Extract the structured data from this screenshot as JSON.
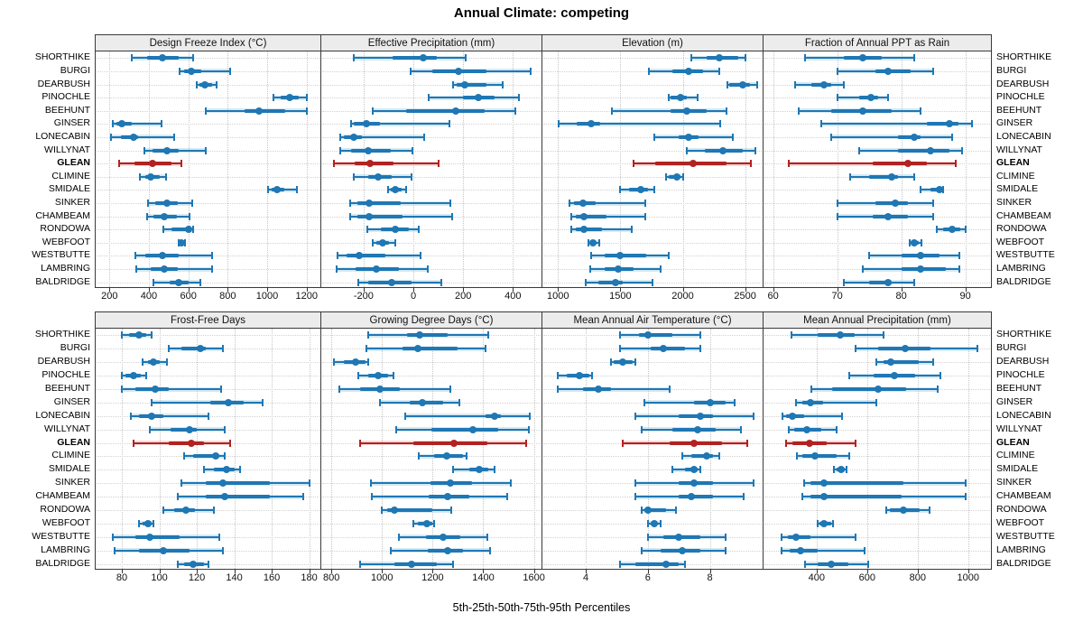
{
  "title": "Annual Climate: competing",
  "xlabel": "5th-25th-50th-75th-95th Percentiles",
  "colors": {
    "series_dark": "#1f77b4",
    "series_light": "#9ecae1",
    "highlight_dark": "#b22222",
    "highlight_light": "#e9a3a3",
    "strip_bg": "#ececec",
    "grid": "#c6c6c6"
  },
  "sites": [
    "SHORTHIKE",
    "BURGI",
    "DEARBUSH",
    "PINOCHLE",
    "BEEHUNT",
    "GINSER",
    "LONECABIN",
    "WILLYNAT",
    "GLEAN",
    "CLIMINE",
    "SMIDALE",
    "SINKER",
    "CHAMBEAM",
    "RONDOWA",
    "WEBFOOT",
    "WESTBUTTE",
    "LAMBRING",
    "BALDRIDGE"
  ],
  "highlight_site": "GLEAN",
  "chart_data": {
    "type": "interval",
    "percentiles": [
      5,
      25,
      50,
      75,
      95
    ],
    "panels": [
      {
        "title": "Design Freeze Index (°C)",
        "xlim": [
          130,
          1270
        ],
        "ticks": [
          200,
          400,
          600,
          800,
          1000,
          1200
        ],
        "values": [
          [
            315,
            390,
            470,
            550,
            625
          ],
          [
            555,
            580,
            615,
            665,
            810
          ],
          [
            645,
            655,
            685,
            720,
            745
          ],
          [
            1030,
            1070,
            1115,
            1160,
            1200
          ],
          [
            690,
            885,
            960,
            1090,
            1200
          ],
          [
            215,
            235,
            265,
            315,
            465
          ],
          [
            210,
            260,
            320,
            345,
            530
          ],
          [
            375,
            420,
            490,
            550,
            690
          ],
          [
            250,
            325,
            420,
            515,
            565
          ],
          [
            355,
            380,
            410,
            455,
            485
          ],
          [
            1005,
            1025,
            1050,
            1085,
            1150
          ],
          [
            395,
            430,
            490,
            545,
            620
          ],
          [
            390,
            425,
            480,
            540,
            605
          ],
          [
            475,
            515,
            600,
            615,
            625
          ],
          [
            550,
            556,
            565,
            575,
            585
          ],
          [
            330,
            380,
            470,
            550,
            720
          ],
          [
            335,
            410,
            480,
            545,
            720
          ],
          [
            425,
            505,
            550,
            600,
            660
          ]
        ]
      },
      {
        "title": "Effective Precipitation (mm)",
        "xlim": [
          -370,
          515
        ],
        "ticks": [
          -200,
          0,
          200,
          400
        ],
        "values": [
          [
            -240,
            -85,
            40,
            95,
            210
          ],
          [
            -10,
            75,
            180,
            295,
            470
          ],
          [
            160,
            175,
            205,
            295,
            360
          ],
          [
            60,
            200,
            260,
            325,
            425
          ],
          [
            -165,
            -30,
            170,
            285,
            410
          ],
          [
            -250,
            -240,
            -190,
            -135,
            145
          ],
          [
            -295,
            -280,
            -240,
            -205,
            45
          ],
          [
            -295,
            -250,
            -180,
            -90,
            -5
          ],
          [
            -320,
            -235,
            -175,
            -80,
            100
          ],
          [
            -240,
            -180,
            -143,
            -87,
            -9
          ],
          [
            -100,
            -90,
            -73,
            -48,
            -30
          ],
          [
            -255,
            -225,
            -178,
            -50,
            148
          ],
          [
            -255,
            -225,
            -178,
            -45,
            155
          ],
          [
            -185,
            -130,
            -73,
            -18,
            20
          ],
          [
            -165,
            -148,
            -125,
            -97,
            -73
          ],
          [
            -305,
            -267,
            -218,
            -111,
            30
          ],
          [
            -310,
            -233,
            -148,
            -57,
            58
          ],
          [
            -220,
            -182,
            -87,
            -8,
            113
          ]
        ]
      },
      {
        "title": "Elevation (m)",
        "xlim": [
          875,
          2640
        ],
        "ticks": [
          1000,
          1500,
          2000,
          2500
        ],
        "values": [
          [
            2070,
            2190,
            2295,
            2445,
            2505
          ],
          [
            1730,
            1920,
            2050,
            2160,
            2295
          ],
          [
            2355,
            2375,
            2480,
            2540,
            2595
          ],
          [
            1890,
            1900,
            1980,
            2030,
            2120
          ],
          [
            1430,
            1905,
            2035,
            2190,
            2350
          ],
          [
            1005,
            1150,
            1265,
            1340,
            2300
          ],
          [
            1775,
            1965,
            2050,
            2125,
            2400
          ],
          [
            2030,
            2175,
            2320,
            2480,
            2585
          ],
          [
            1605,
            1780,
            2080,
            2350,
            2545
          ],
          [
            1865,
            1885,
            1950,
            1985,
            2005
          ],
          [
            1500,
            1570,
            1660,
            1720,
            1775
          ],
          [
            1090,
            1130,
            1200,
            1300,
            1700
          ],
          [
            1110,
            1140,
            1210,
            1390,
            1700
          ],
          [
            1110,
            1140,
            1210,
            1355,
            1590
          ],
          [
            1245,
            1260,
            1280,
            1310,
            1330
          ],
          [
            1265,
            1375,
            1500,
            1705,
            1885
          ],
          [
            1260,
            1375,
            1485,
            1605,
            1820
          ],
          [
            1220,
            1320,
            1460,
            1520,
            1760
          ]
        ]
      },
      {
        "title": "Fraction of Annual PPT as Rain",
        "xlim": [
          58.5,
          94
        ],
        "ticks": [
          60,
          70,
          80,
          90
        ],
        "values": [
          [
            65,
            71,
            74,
            77,
            82
          ],
          [
            70,
            76,
            78,
            81.5,
            85
          ],
          [
            63.5,
            66,
            68,
            69,
            71
          ],
          [
            70,
            73.5,
            75.3,
            76.4,
            78
          ],
          [
            64,
            69,
            74,
            78.5,
            83
          ],
          [
            67.5,
            84,
            87.5,
            89,
            91
          ],
          [
            69,
            79.5,
            82,
            83,
            88
          ],
          [
            73.5,
            79.5,
            84.5,
            87.5,
            89.5
          ],
          [
            62.5,
            75.5,
            81,
            84,
            88.5
          ],
          [
            72,
            75,
            78.5,
            79.5,
            82
          ],
          [
            83,
            84.5,
            85.9,
            86.1,
            86.5
          ],
          [
            70,
            76,
            79,
            81,
            85
          ],
          [
            70,
            75.5,
            78,
            81,
            85
          ],
          [
            85.5,
            86.5,
            88,
            89.2,
            90
          ],
          [
            81.3,
            81.5,
            82,
            82.8,
            83.1
          ],
          [
            75,
            80,
            83,
            86,
            89
          ],
          [
            74,
            80,
            83,
            87,
            89
          ],
          [
            71,
            75,
            78,
            78.5,
            82
          ]
        ]
      },
      {
        "title": "Frost-Free Days",
        "xlim": [
          66,
          186
        ],
        "ticks": [
          80,
          100,
          120,
          140,
          160,
          180
        ],
        "values": [
          [
            80,
            84,
            89,
            93,
            96
          ],
          [
            105,
            112,
            122,
            125,
            134
          ],
          [
            91,
            94,
            97,
            100,
            104
          ],
          [
            80,
            82,
            86,
            90,
            93
          ],
          [
            80,
            87,
            98,
            105,
            133
          ],
          [
            96,
            127,
            137,
            145,
            155
          ],
          [
            85,
            89,
            96,
            102,
            126
          ],
          [
            95,
            106,
            116,
            120,
            135
          ],
          [
            86,
            105,
            117,
            124,
            138
          ],
          [
            113,
            118,
            130,
            132,
            135
          ],
          [
            124,
            129,
            136,
            140,
            143
          ],
          [
            112,
            125,
            134,
            159,
            180
          ],
          [
            110,
            125,
            135,
            159,
            177
          ],
          [
            102,
            108,
            114,
            119,
            129
          ],
          [
            89,
            91,
            94,
            96,
            97
          ],
          [
            75,
            87,
            95,
            111,
            132
          ],
          [
            76,
            89,
            102,
            116,
            134
          ],
          [
            110,
            113,
            118,
            124,
            126
          ]
        ]
      },
      {
        "title": "Growing Degree Days (°C)",
        "xlim": [
          760,
          1630
        ],
        "ticks": [
          800,
          1000,
          1200,
          1400,
          1600
        ],
        "values": [
          [
            945,
            1100,
            1150,
            1260,
            1420
          ],
          [
            940,
            1080,
            1140,
            1300,
            1410
          ],
          [
            810,
            850,
            895,
            935,
            945
          ],
          [
            905,
            947,
            985,
            1025,
            1045
          ],
          [
            830,
            915,
            990,
            1070,
            1270
          ],
          [
            990,
            1110,
            1160,
            1240,
            1305
          ],
          [
            1090,
            1410,
            1445,
            1470,
            1585
          ],
          [
            1055,
            1195,
            1360,
            1460,
            1580
          ],
          [
            915,
            1125,
            1285,
            1415,
            1570
          ],
          [
            1145,
            1205,
            1255,
            1320,
            1335
          ],
          [
            1280,
            1345,
            1385,
            1420,
            1445
          ],
          [
            955,
            1190,
            1270,
            1355,
            1510
          ],
          [
            958,
            1185,
            1260,
            1345,
            1495
          ],
          [
            1000,
            1022,
            1050,
            1200,
            1275
          ],
          [
            1125,
            1140,
            1177,
            1198,
            1207
          ],
          [
            1065,
            1175,
            1243,
            1310,
            1415
          ],
          [
            1035,
            1180,
            1258,
            1320,
            1425
          ],
          [
            915,
            1050,
            1117,
            1215,
            1280
          ]
        ]
      },
      {
        "title": "Mean Annual Air Temperature (°C)",
        "xlim": [
          2.6,
          9.7
        ],
        "ticks": [
          4,
          6,
          8
        ],
        "values": [
          [
            5.1,
            5.7,
            6.0,
            6.8,
            7.7
          ],
          [
            5.1,
            6.1,
            6.5,
            7.2,
            7.7
          ],
          [
            4.8,
            4.9,
            5.2,
            5.5,
            5.6
          ],
          [
            3.1,
            3.4,
            3.8,
            4.1,
            4.2
          ],
          [
            3.1,
            3.9,
            4.4,
            4.8,
            6.7
          ],
          [
            5.9,
            7.5,
            8.0,
            8.5,
            8.8
          ],
          [
            5.6,
            7.0,
            7.7,
            8.1,
            9.4
          ],
          [
            5.8,
            6.8,
            7.6,
            8.2,
            9.0
          ],
          [
            5.2,
            6.7,
            7.5,
            8.4,
            9.2
          ],
          [
            7.1,
            7.4,
            7.9,
            8.1,
            8.3
          ],
          [
            6.8,
            7.2,
            7.5,
            7.6,
            7.7
          ],
          [
            5.6,
            7.0,
            7.5,
            8.1,
            9.4
          ],
          [
            5.6,
            7.0,
            7.4,
            8.1,
            9.1
          ],
          [
            5.8,
            5.9,
            6.0,
            6.6,
            6.9
          ],
          [
            6.0,
            6.1,
            6.2,
            6.3,
            6.4
          ],
          [
            6.0,
            6.5,
            7.0,
            7.7,
            8.5
          ],
          [
            5.8,
            6.4,
            7.1,
            7.7,
            8.5
          ],
          [
            5.1,
            5.6,
            6.6,
            7.0,
            7.2
          ]
        ]
      },
      {
        "title": "Mean Annual Precipitation (mm)",
        "xlim": [
          190,
          1090
        ],
        "ticks": [
          400,
          600,
          800,
          1000
        ],
        "values": [
          [
            300,
            405,
            495,
            550,
            665
          ],
          [
            555,
            645,
            750,
            850,
            1035
          ],
          [
            635,
            665,
            695,
            805,
            860
          ],
          [
            530,
            625,
            707,
            790,
            890
          ],
          [
            380,
            460,
            645,
            755,
            880
          ],
          [
            320,
            345,
            375,
            425,
            635
          ],
          [
            265,
            280,
            305,
            350,
            500
          ],
          [
            290,
            310,
            360,
            420,
            480
          ],
          [
            280,
            305,
            372,
            440,
            555
          ],
          [
            322,
            345,
            395,
            478,
            530
          ],
          [
            470,
            478,
            496,
            510,
            517
          ],
          [
            350,
            375,
            430,
            745,
            990
          ],
          [
            345,
            375,
            430,
            735,
            990
          ],
          [
            677,
            690,
            745,
            808,
            846
          ],
          [
            405,
            412,
            430,
            457,
            466
          ],
          [
            260,
            286,
            319,
            374,
            555
          ],
          [
            260,
            292,
            338,
            406,
            590
          ],
          [
            356,
            404,
            457,
            525,
            605
          ]
        ]
      }
    ]
  }
}
